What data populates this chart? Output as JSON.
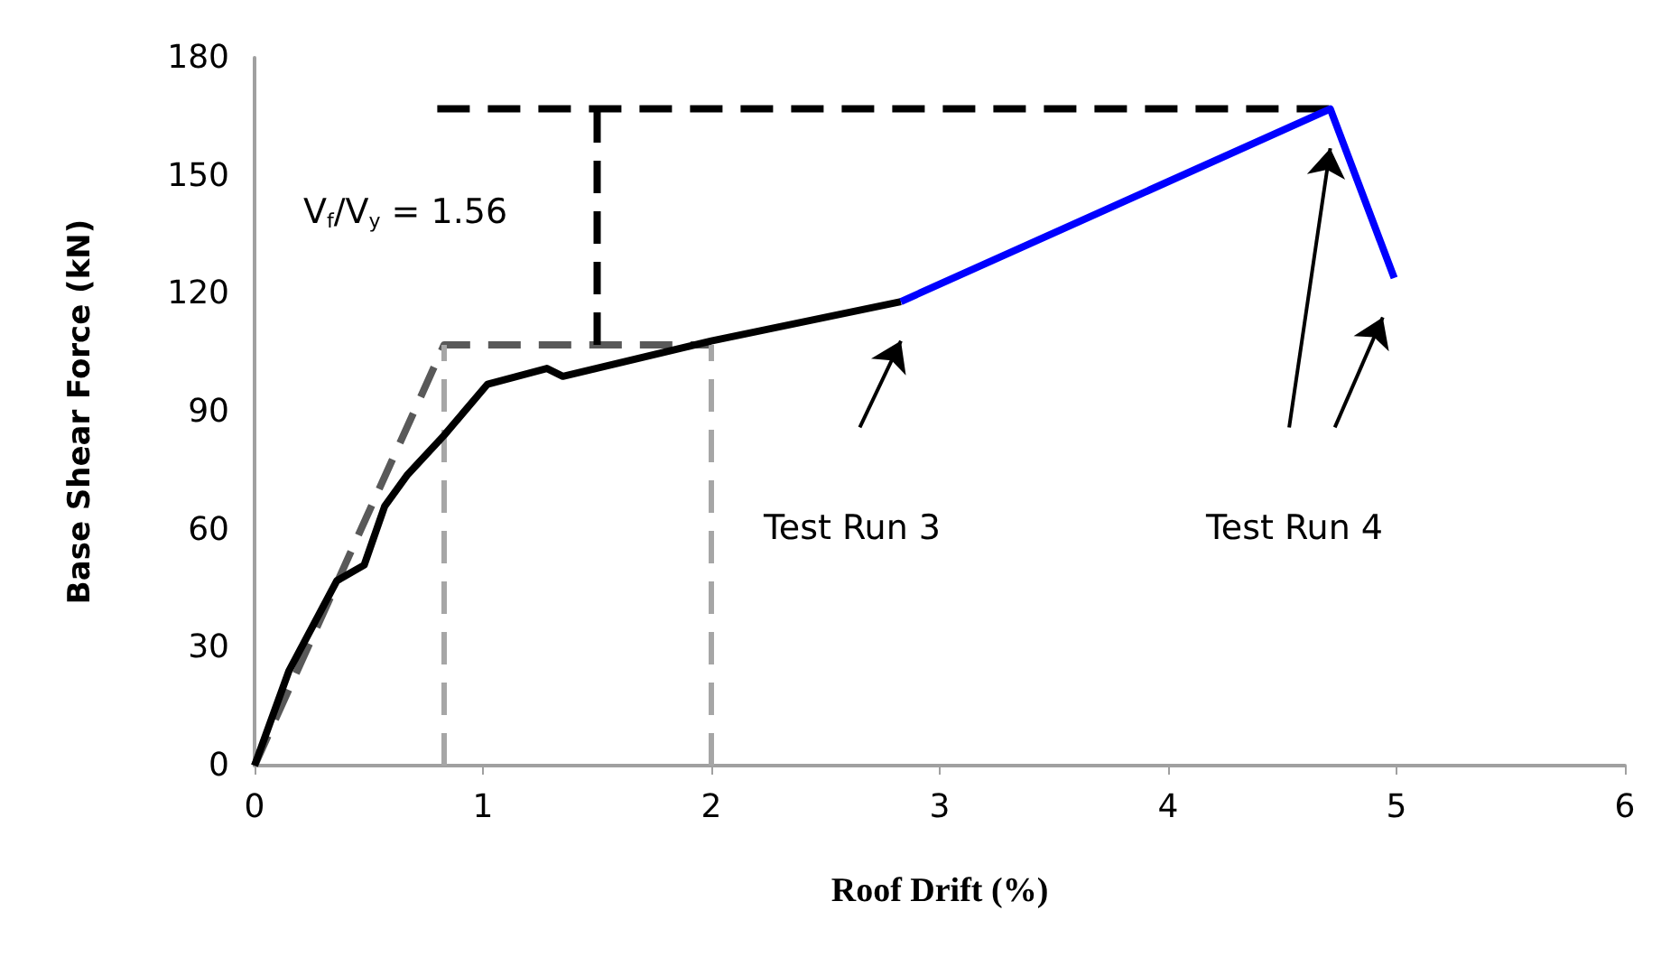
{
  "chart_data": {
    "type": "line",
    "xlabel": "Roof Drift (%)",
    "ylabel": "Base Shear Force (kN)",
    "xlim": [
      0,
      6
    ],
    "xticks": [
      0,
      1,
      2,
      3,
      4,
      5,
      6
    ],
    "ylim": [
      0,
      180
    ],
    "yticks": [
      0,
      30,
      60,
      90,
      120,
      150,
      180
    ],
    "grid": false,
    "series": [
      {
        "color": "#595959",
        "line_style": "dashed",
        "x": [
          0,
          0.83,
          2.0
        ],
        "values": [
          0,
          107,
          107
        ]
      },
      {
        "color": "#a6a6a6",
        "line_style": "dashed",
        "x": [
          0.83,
          0.83
        ],
        "values": [
          0,
          107
        ]
      },
      {
        "color": "#a6a6a6",
        "line_style": "dashed",
        "x": [
          2.0,
          2.0
        ],
        "values": [
          0,
          107
        ]
      },
      {
        "color": "#000000",
        "line_style": "dashed",
        "x": [
          0.8,
          4.71
        ],
        "values": [
          167,
          167
        ]
      },
      {
        "color": "#000000",
        "line_style": "dashed",
        "x": [
          1.5,
          1.5
        ],
        "values": [
          107,
          167
        ]
      },
      {
        "color": "#000000",
        "line_style": "solid",
        "x": [
          0,
          0.15,
          0.36,
          0.48,
          0.57,
          0.67,
          0.83,
          1.02,
          1.28,
          1.35,
          2.0,
          2.83
        ],
        "values": [
          0,
          24,
          47,
          51,
          66,
          74,
          84,
          97,
          101,
          99,
          108,
          118
        ]
      },
      {
        "color": "#0000ff",
        "line_style": "solid",
        "x": [
          2.83,
          4.71,
          4.99
        ],
        "values": [
          118,
          167,
          124
        ]
      }
    ],
    "annotations": [
      "V$_{f}$/V$_{y}$ = 1.56",
      "Test Run 3",
      "Test Run 4"
    ]
  }
}
